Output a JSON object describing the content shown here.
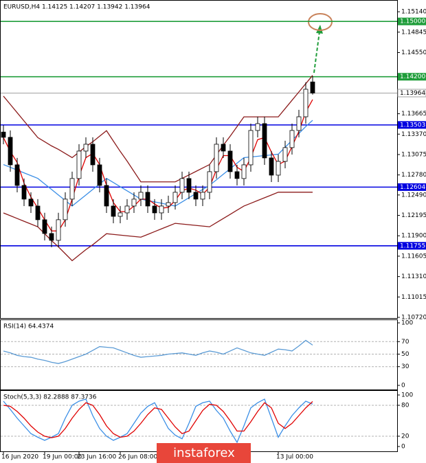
{
  "chart_data": [
    {
      "type": "candlestick",
      "title": "EURUSD,H4  1.14125 1.14207 1.13942 1.13964",
      "categories": [
        "16 Jun 2020",
        null,
        null,
        null,
        null,
        null,
        "19 Jun 00:00",
        null,
        null,
        null,
        null,
        "23 Jun 16:00",
        null,
        null,
        null,
        null,
        null,
        "26 Jun 08:00",
        null,
        null,
        null,
        null,
        null,
        null,
        null,
        null,
        null,
        null,
        null,
        null,
        null,
        null,
        null,
        null,
        null,
        null,
        null,
        null,
        null,
        null,
        "13 Jul 00:00",
        null,
        null,
        null,
        null,
        null
      ],
      "open": [
        1.134,
        1.13324,
        1.12926,
        1.12628,
        1.1243,
        1.1233,
        1.12132,
        1.11933,
        1.11834,
        1.12132,
        1.1243,
        1.12728,
        1.13125,
        1.13224,
        1.12926,
        1.12628,
        1.1233,
        1.12181,
        1.12231,
        1.1233,
        1.1243,
        1.12529,
        1.1233,
        1.12231,
        1.1233,
        1.1238,
        1.12529,
        1.12728,
        1.12529,
        1.1243,
        1.12529,
        1.12827,
        1.13224,
        1.13125,
        1.12827,
        1.12728,
        1.12926,
        1.13423,
        1.13522,
        1.13026,
        1.12777,
        1.12976,
        1.13175,
        1.13423,
        1.13621,
        1.14125
      ],
      "high": [
        1.135,
        1.13424,
        1.13026,
        1.12728,
        1.1253,
        1.1243,
        1.12232,
        1.12033,
        1.12232,
        1.1253,
        1.12828,
        1.13225,
        1.13324,
        1.13324,
        1.13026,
        1.12728,
        1.1243,
        1.12331,
        1.1243,
        1.1253,
        1.12629,
        1.12629,
        1.1243,
        1.1243,
        1.1248,
        1.12629,
        1.12828,
        1.12828,
        1.12629,
        1.12629,
        1.12927,
        1.13324,
        1.13324,
        1.13225,
        1.12927,
        1.13026,
        1.13523,
        1.13622,
        1.13622,
        1.13126,
        1.13076,
        1.13275,
        1.13523,
        1.13721,
        1.14119,
        1.14207
      ],
      "low": [
        1.13224,
        1.12826,
        1.12528,
        1.1233,
        1.1223,
        1.12032,
        1.11833,
        1.11734,
        1.11734,
        1.12032,
        1.1233,
        1.12628,
        1.13025,
        1.12826,
        1.12528,
        1.1223,
        1.12081,
        1.12081,
        1.12131,
        1.1223,
        1.1233,
        1.1223,
        1.12131,
        1.12131,
        1.1223,
        1.1228,
        1.12429,
        1.12429,
        1.1233,
        1.1233,
        1.12429,
        1.12727,
        1.13025,
        1.12727,
        1.12628,
        1.12628,
        1.12826,
        1.13323,
        1.12926,
        1.12677,
        1.12677,
        1.12876,
        1.13075,
        1.13323,
        1.13521,
        1.13942
      ],
      "close": [
        1.13324,
        1.12926,
        1.12628,
        1.1243,
        1.1233,
        1.12132,
        1.11933,
        1.11834,
        1.12132,
        1.1243,
        1.12728,
        1.13125,
        1.13224,
        1.12926,
        1.12628,
        1.1233,
        1.12181,
        1.12231,
        1.1233,
        1.1243,
        1.12529,
        1.1233,
        1.12231,
        1.1233,
        1.1238,
        1.12529,
        1.12728,
        1.12529,
        1.1243,
        1.12529,
        1.12827,
        1.13224,
        1.13125,
        1.12827,
        1.12728,
        1.12926,
        1.13423,
        1.13522,
        1.13026,
        1.12777,
        1.12976,
        1.13175,
        1.13423,
        1.13621,
        1.14019,
        1.13964
      ],
      "up_color": "#ffffff",
      "down_color": "#000000",
      "overlays": [
        {
          "color": "#8b1a1a",
          "values": [
            1.1392,
            1.138,
            1.1368,
            1.1356,
            1.1344,
            1.1332,
            1.1326,
            1.132,
            1.1315,
            1.1309,
            1.1303,
            1.1311,
            1.1319,
            1.1326,
            1.1334,
            1.1342,
            1.1327,
            1.1312,
            1.1298,
            1.1283,
            1.1268,
            1.1268,
            1.1268,
            1.1268,
            1.1268,
            1.1268,
            1.1273,
            1.1278,
            1.1283,
            1.1288,
            1.1293,
            1.1307,
            1.1321,
            1.1334,
            1.1348,
            1.1362,
            1.1362,
            1.1362,
            1.1362,
            1.1362,
            1.1362,
            1.1374,
            1.1386,
            1.1398,
            1.141,
            1.1422
          ]
        },
        {
          "color": "#8b1a1a",
          "values": [
            1.1223,
            1.1219,
            1.1215,
            1.1211,
            1.1207,
            1.1203,
            1.1193,
            1.1183,
            1.1174,
            1.1164,
            1.1154,
            1.1162,
            1.117,
            1.1177,
            1.1185,
            1.1193,
            1.1192,
            1.1191,
            1.119,
            1.1189,
            1.1188,
            1.1192,
            1.1196,
            1.12,
            1.1204,
            1.1208,
            1.1207,
            1.1206,
            1.1205,
            1.1204,
            1.1203,
            1.1209,
            1.1215,
            1.1221,
            1.1227,
            1.1233,
            1.1237,
            1.1241,
            1.1245,
            1.1249,
            1.1253,
            1.1253,
            1.1253,
            1.1253,
            1.1253,
            1.1253
          ]
        },
        {
          "color": "#3a8ee6",
          "values": [
            1.1293,
            1.1289,
            1.1285,
            1.1281,
            1.1277,
            1.1273,
            1.1265,
            1.1257,
            1.1249,
            1.1241,
            1.1233,
            1.1241,
            1.1249,
            1.1257,
            1.1265,
            1.1273,
            1.1267,
            1.1261,
            1.1255,
            1.1249,
            1.1243,
            1.1241,
            1.1239,
            1.1237,
            1.1235,
            1.1233,
            1.1239,
            1.1245,
            1.1251,
            1.1257,
            1.1263,
            1.1271,
            1.1279,
            1.1287,
            1.1295,
            1.1303,
            1.1304,
            1.1305,
            1.1306,
            1.1307,
            1.1308,
            1.1318,
            1.1328,
            1.1338,
            1.1348,
            1.1357
          ]
        },
        {
          "color": "#e00000",
          "values": [
            1.1332,
            1.1312,
            1.1296,
            1.1266,
            1.1246,
            1.123,
            1.1213,
            1.1197,
            1.1197,
            1.1213,
            1.1243,
            1.1276,
            1.1303,
            1.1309,
            1.1293,
            1.1263,
            1.1238,
            1.1225,
            1.1225,
            1.1233,
            1.1243,
            1.1243,
            1.1236,
            1.123,
            1.1231,
            1.1241,
            1.1255,
            1.1259,
            1.1256,
            1.125,
            1.126,
            1.1286,
            1.1306,
            1.1306,
            1.1289,
            1.1283,
            1.1303,
            1.1329,
            1.1332,
            1.1311,
            1.1293,
            1.1298,
            1.1319,
            1.1341,
            1.1369,
            1.1387
          ]
        }
      ],
      "ylim": [
        1.1071,
        1.1531
      ],
      "yticks": [
        {
          "value": 1.1514,
          "label": "1.15140"
        },
        1.14845,
        {
          "value": 1.1455,
          "label": "1.14550"
        },
        1.13665,
        {
          "value": 1.1337,
          "label": "1.13370"
        },
        1.13075,
        {
          "value": 1.1278,
          "label": "1.12780"
        },
        {
          "value": 1.1249,
          "label": "1.12490"
        },
        1.12195,
        {
          "value": 1.119,
          "label": "1.11900"
        },
        1.11605,
        {
          "value": 1.1131,
          "label": "1.11310"
        },
        1.11015,
        {
          "value": 1.1072,
          "label": "1.10720"
        }
      ],
      "levels": [
        {
          "value": 1.15,
          "label": "1.15000",
          "color": "#1f9d3a"
        },
        {
          "value": 1.142,
          "label": "1.14200",
          "color": "#1f9d3a"
        },
        {
          "value": 1.13503,
          "label": "1.13503",
          "color": "#0000e0"
        },
        {
          "value": 1.12604,
          "label": "1.12604",
          "color": "#0000e0"
        },
        {
          "value": 1.11755,
          "label": "1.11755",
          "color": "#0000e0"
        }
      ],
      "last": {
        "value": 1.13964,
        "label": "1.13964",
        "color": "#a0a0a0"
      }
    },
    {
      "type": "line",
      "title": "RSI(14) 64.4374",
      "series": [
        {
          "color": "#5b9bd5",
          "values": [
            55,
            52,
            48,
            46,
            45,
            42,
            40,
            37,
            35,
            38,
            42,
            46,
            50,
            56,
            62,
            61,
            60,
            56,
            52,
            48,
            45,
            46,
            47,
            48,
            50,
            51,
            52,
            50,
            48,
            52,
            55,
            53,
            50,
            55,
            60,
            56,
            52,
            50,
            48,
            53,
            58,
            57,
            55,
            63,
            72,
            64.4374
          ]
        }
      ],
      "ylim": [
        0,
        100
      ],
      "yticks": [
        100,
        70,
        50,
        30,
        0
      ]
    },
    {
      "type": "line",
      "title": "Stoch(5,3,3) 82.2888 87.3736",
      "series": [
        {
          "color": "#3a8ee6",
          "values": [
            88,
            72,
            55,
            40,
            25,
            18,
            12,
            18,
            25,
            55,
            80,
            88,
            92,
            60,
            35,
            20,
            12,
            18,
            25,
            45,
            65,
            78,
            85,
            60,
            35,
            22,
            15,
            45,
            78,
            85,
            88,
            70,
            55,
            30,
            8,
            40,
            75,
            85,
            92,
            55,
            18,
            40,
            60,
            75,
            88,
            82.2888
          ]
        },
        {
          "color": "#e00000",
          "values": [
            80,
            78,
            68,
            55,
            40,
            28,
            20,
            17,
            20,
            35,
            55,
            72,
            85,
            80,
            62,
            40,
            25,
            18,
            20,
            30,
            45,
            62,
            75,
            72,
            55,
            38,
            25,
            30,
            50,
            70,
            82,
            80,
            68,
            50,
            30,
            30,
            48,
            68,
            85,
            75,
            45,
            35,
            45,
            60,
            75,
            87.3736
          ]
        }
      ],
      "ylim": [
        0,
        100
      ],
      "yticks": [
        100,
        80,
        20,
        0
      ]
    }
  ],
  "watermark": "instaforex"
}
